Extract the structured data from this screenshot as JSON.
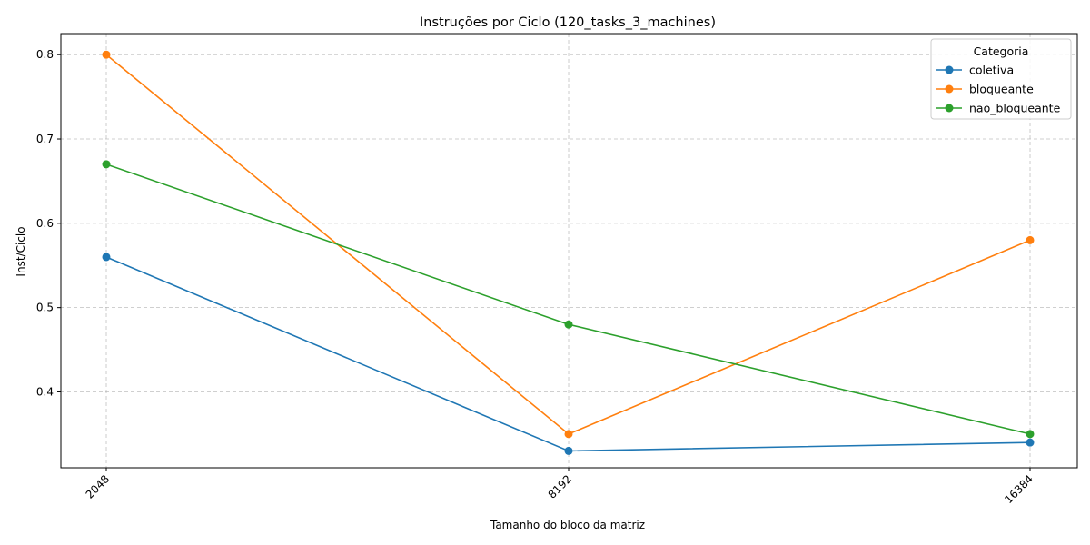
{
  "chart_data": {
    "type": "line",
    "title": "Instruções por Ciclo (120_tasks_3_machines)",
    "xlabel": "Tamanho do bloco da matriz",
    "ylabel": "Inst/Ciclo",
    "categories": [
      "2048",
      "8192",
      "16384"
    ],
    "ylim": [
      0.31,
      0.825
    ],
    "yticks": [
      0.4,
      0.5,
      0.6,
      0.7,
      0.8
    ],
    "ytick_labels": [
      "0.4",
      "0.5",
      "0.6",
      "0.7",
      "0.8"
    ],
    "grid": true,
    "legend_title": "Categoria",
    "legend_position": "top-right",
    "series": [
      {
        "name": "coletiva",
        "color": "#1f77b4",
        "values": [
          0.56,
          0.33,
          0.34
        ]
      },
      {
        "name": "bloqueante",
        "color": "#ff7f0e",
        "values": [
          0.8,
          0.35,
          0.58
        ]
      },
      {
        "name": "nao_bloqueante",
        "color": "#2ca02c",
        "values": [
          0.67,
          0.48,
          0.35
        ]
      }
    ]
  }
}
